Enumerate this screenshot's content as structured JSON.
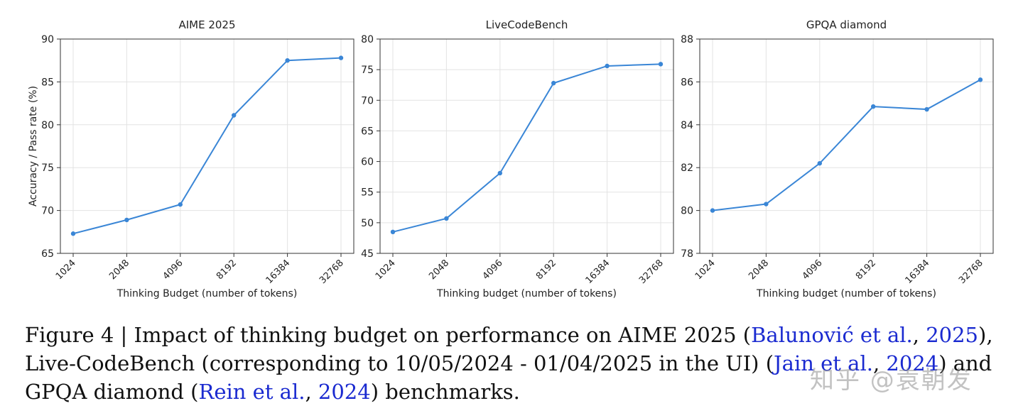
{
  "chart_data": [
    {
      "type": "line",
      "title": "AIME 2025",
      "xlabel": "Thinking Budget (number of tokens)",
      "ylabel": "Accuracy / Pass rate (%)",
      "categories": [
        "1024",
        "2048",
        "4096",
        "8192",
        "16384",
        "32768"
      ],
      "values": [
        67.3,
        68.9,
        70.7,
        81.1,
        87.5,
        87.8
      ],
      "ylim": [
        65,
        90
      ],
      "yticks": [
        65,
        70,
        75,
        80,
        85,
        90
      ],
      "grid": true
    },
    {
      "type": "line",
      "title": "LiveCodeBench",
      "xlabel": "Thinking budget (number of tokens)",
      "ylabel": "",
      "categories": [
        "1024",
        "2048",
        "4096",
        "8192",
        "16384",
        "32768"
      ],
      "values": [
        48.5,
        50.7,
        58.1,
        72.8,
        75.6,
        75.9
      ],
      "ylim": [
        45,
        80
      ],
      "yticks": [
        45,
        50,
        55,
        60,
        65,
        70,
        75,
        80
      ],
      "grid": true
    },
    {
      "type": "line",
      "title": "GPQA diamond",
      "xlabel": "Thinking budget (number of tokens)",
      "ylabel": "",
      "categories": [
        "1024",
        "2048",
        "4096",
        "8192",
        "16384",
        "32768"
      ],
      "values": [
        80.0,
        80.3,
        82.2,
        84.85,
        84.72,
        86.1
      ],
      "ylim": [
        78,
        88
      ],
      "yticks": [
        78,
        80,
        82,
        84,
        86,
        88
      ],
      "grid": true
    }
  ],
  "colors": {
    "line": "#3a86d6",
    "grid": "#e3e3e3",
    "axis": "#333333",
    "cite": "#1a2ad0"
  },
  "caption": {
    "t1": "Figure 4 | Impact of thinking budget on performance on AIME 2025 (",
    "c1": "Balunović et al.",
    "t2": ", ",
    "c2": "2025",
    "t3": "), Live-CodeBench (corresponding to 10/05/2024 - 01/04/2025 in the UI) (",
    "c3": "Jain et al.",
    "t4": ", ",
    "c4": "2024",
    "t5": ") and GPQA diamond (",
    "c5": "Rein et al.",
    "t6": ", ",
    "c6": "2024",
    "t7": ") benchmarks."
  },
  "watermark": "知乎 @袁朝发"
}
